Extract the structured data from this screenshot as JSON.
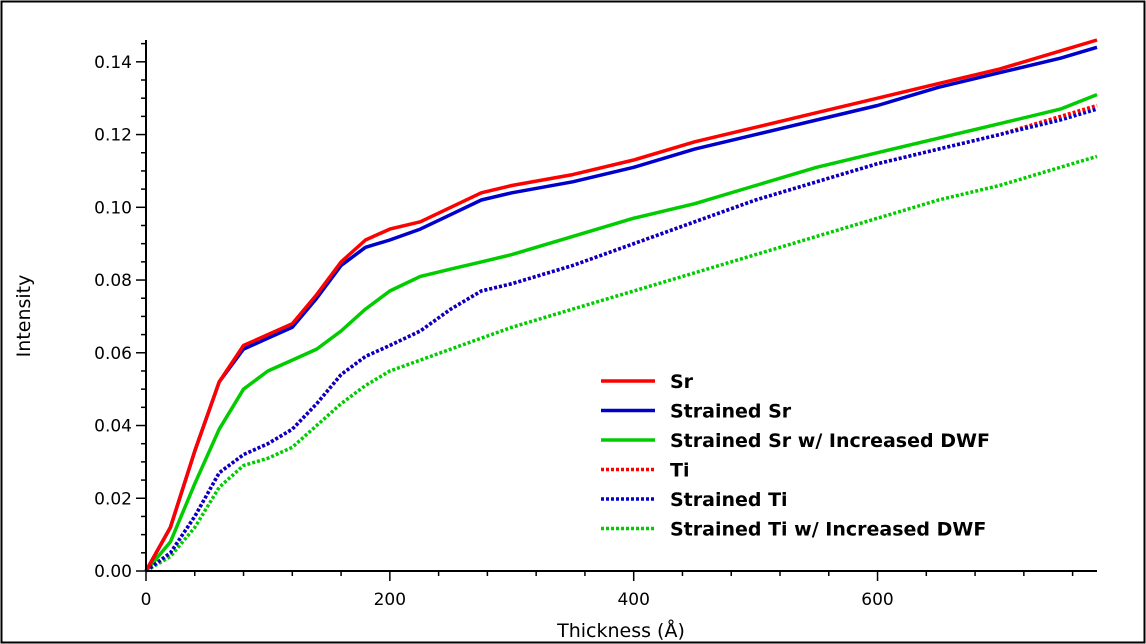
{
  "chart_data": {
    "type": "line",
    "xlabel": "Thickness (Å)",
    "ylabel": "Intensity",
    "xlim": [
      0,
      780
    ],
    "ylim": [
      0,
      0.146
    ],
    "x_ticks": [
      "0",
      "200",
      "400",
      "600"
    ],
    "x_tick_values": [
      0,
      200,
      400,
      600
    ],
    "y_ticks": [
      "0.00",
      "0.02",
      "0.04",
      "0.06",
      "0.08",
      "0.10",
      "0.12",
      "0.14"
    ],
    "y_tick_values": [
      0,
      0.02,
      0.04,
      0.06,
      0.08,
      0.1,
      0.12,
      0.14
    ],
    "grid": false,
    "legend_position": "bottom-right",
    "x": [
      0,
      20,
      40,
      60,
      80,
      100,
      120,
      140,
      160,
      180,
      200,
      225,
      250,
      275,
      300,
      350,
      400,
      450,
      500,
      550,
      600,
      650,
      700,
      750,
      780
    ],
    "series": [
      {
        "name": "Sr",
        "color": "#ff0000",
        "style": "solid",
        "values": [
          0.0,
          0.012,
          0.033,
          0.052,
          0.062,
          0.065,
          0.068,
          0.076,
          0.085,
          0.091,
          0.094,
          0.096,
          0.1,
          0.104,
          0.106,
          0.109,
          0.113,
          0.118,
          0.122,
          0.126,
          0.13,
          0.134,
          0.138,
          0.143,
          0.146
        ]
      },
      {
        "name": "Strained Sr",
        "color": "#0000cc",
        "style": "solid",
        "values": [
          0.0,
          0.012,
          0.033,
          0.052,
          0.061,
          0.064,
          0.067,
          0.075,
          0.084,
          0.089,
          0.091,
          0.094,
          0.098,
          0.102,
          0.104,
          0.107,
          0.111,
          0.116,
          0.12,
          0.124,
          0.128,
          0.133,
          0.137,
          0.141,
          0.144
        ]
      },
      {
        "name": "Strained Sr w/ Increased DWF",
        "color": "#00cc00",
        "style": "solid",
        "values": [
          0.0,
          0.008,
          0.024,
          0.039,
          0.05,
          0.055,
          0.058,
          0.061,
          0.066,
          0.072,
          0.077,
          0.081,
          0.083,
          0.085,
          0.087,
          0.092,
          0.097,
          0.101,
          0.106,
          0.111,
          0.115,
          0.119,
          0.123,
          0.127,
          0.131
        ]
      },
      {
        "name": "Ti",
        "color": "#ff0000",
        "style": "dotted",
        "values": [
          0.0,
          0.005,
          0.015,
          0.027,
          0.032,
          0.035,
          0.039,
          0.046,
          0.054,
          0.059,
          0.062,
          0.066,
          0.072,
          0.077,
          0.079,
          0.084,
          0.09,
          0.096,
          0.102,
          0.107,
          0.112,
          0.116,
          0.12,
          0.125,
          0.128
        ]
      },
      {
        "name": "Strained Ti",
        "color": "#0000cc",
        "style": "dotted",
        "values": [
          0.0,
          0.005,
          0.015,
          0.027,
          0.032,
          0.035,
          0.039,
          0.046,
          0.054,
          0.059,
          0.062,
          0.066,
          0.072,
          0.077,
          0.079,
          0.084,
          0.09,
          0.096,
          0.102,
          0.107,
          0.112,
          0.116,
          0.12,
          0.124,
          0.127
        ]
      },
      {
        "name": "Strained Ti w/ Increased DWF",
        "color": "#00cc00",
        "style": "dotted",
        "values": [
          0.0,
          0.004,
          0.012,
          0.023,
          0.029,
          0.031,
          0.034,
          0.04,
          0.046,
          0.051,
          0.055,
          0.058,
          0.061,
          0.064,
          0.067,
          0.072,
          0.077,
          0.082,
          0.087,
          0.092,
          0.097,
          0.102,
          0.106,
          0.111,
          0.114
        ]
      }
    ]
  }
}
